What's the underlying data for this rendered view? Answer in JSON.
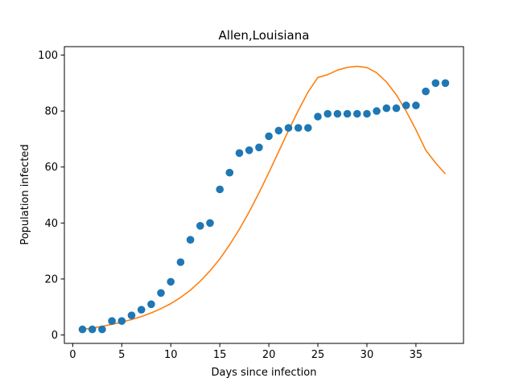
{
  "chart_data": {
    "type": "scatter",
    "title": "Allen,Louisiana",
    "xlabel": "Days since infection",
    "ylabel": "Population infected",
    "xlim": [
      -0.85,
      39.85
    ],
    "ylim": [
      -3,
      103
    ],
    "xticks": [
      0,
      5,
      10,
      15,
      20,
      25,
      30,
      35
    ],
    "yticks": [
      0,
      20,
      40,
      60,
      80,
      100
    ],
    "grid": false,
    "legend": "none",
    "series": [
      {
        "kind": "scatter",
        "color": "#1f77b4",
        "x": [
          1,
          2,
          3,
          4,
          5,
          6,
          7,
          8,
          9,
          10,
          11,
          12,
          13,
          14,
          15,
          16,
          17,
          18,
          19,
          20,
          21,
          22,
          23,
          24,
          25,
          26,
          27,
          28,
          29,
          30,
          31,
          32,
          33,
          34,
          35,
          36,
          37,
          38
        ],
        "y": [
          2,
          2,
          2,
          5,
          5,
          7,
          9,
          11,
          15,
          19,
          26,
          34,
          39,
          40,
          52,
          58,
          65,
          66,
          67,
          71,
          73,
          74,
          74,
          74,
          78,
          79,
          79,
          79,
          79,
          79,
          80,
          81,
          81,
          82,
          82,
          87,
          90,
          90
        ]
      },
      {
        "kind": "line",
        "color": "#ff7f0e",
        "x": [
          1,
          2,
          3,
          4,
          5,
          6,
          7,
          8,
          9,
          10,
          11,
          12,
          13,
          14,
          15,
          16,
          17,
          18,
          19,
          20,
          21,
          22,
          23,
          24,
          25,
          26,
          27,
          28,
          29,
          30,
          31,
          32,
          33,
          34,
          35,
          36,
          37,
          38
        ],
        "y": [
          2.0,
          2.5,
          3.1,
          3.8,
          4.6,
          5.5,
          6.6,
          7.9,
          9.4,
          11.2,
          13.4,
          16.0,
          19.2,
          22.9,
          27.2,
          32.2,
          37.8,
          44.0,
          50.8,
          58.0,
          65.5,
          73.0,
          80.2,
          86.8,
          92.0,
          93.0,
          94.6,
          95.6,
          96.0,
          95.5,
          93.7,
          90.4,
          85.8,
          80.0,
          73.3,
          66.0,
          61.5,
          57.5
        ]
      }
    ]
  }
}
